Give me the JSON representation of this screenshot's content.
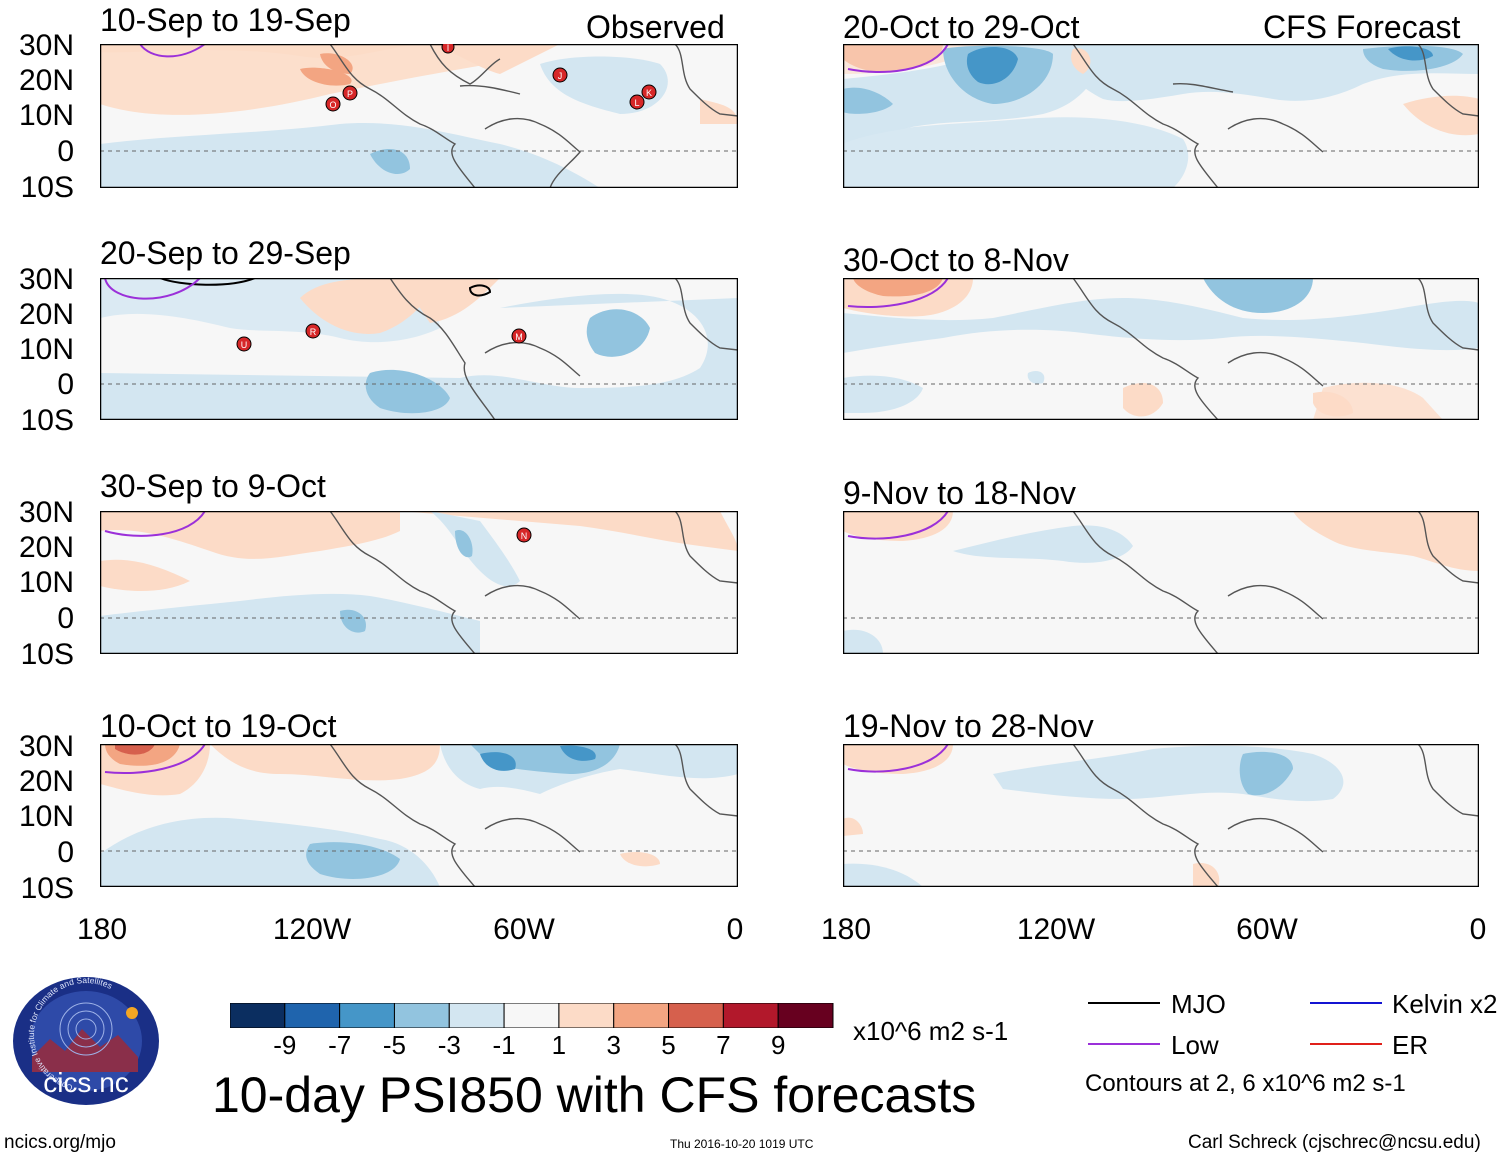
{
  "panels": [
    {
      "title": "10-Sep to 19-Sep",
      "tag": "Observed",
      "storms": [
        "O",
        "P",
        "I",
        "J",
        "K",
        "L"
      ]
    },
    {
      "title": "20-Sep to 29-Sep",
      "tag": "",
      "storms": [
        "U",
        "R",
        "M"
      ]
    },
    {
      "title": "30-Sep to 9-Oct",
      "tag": "",
      "storms": [
        "N"
      ]
    },
    {
      "title": "10-Oct to 19-Oct",
      "tag": ""
    },
    {
      "title": "20-Oct to 29-Oct",
      "tag": "CFS Forecast"
    },
    {
      "title": "30-Oct to 8-Nov",
      "tag": ""
    },
    {
      "title": "9-Nov to 18-Nov",
      "tag": ""
    },
    {
      "title": "19-Nov to 28-Nov",
      "tag": ""
    }
  ],
  "lat_labels": [
    "30N",
    "20N",
    "10N",
    "0",
    "10S"
  ],
  "lon_labels": [
    "180",
    "120W",
    "60W",
    "0"
  ],
  "colorbar": {
    "labels": [
      "-9",
      "-7",
      "-5",
      "-3",
      "-1",
      "1",
      "3",
      "5",
      "7",
      "9"
    ],
    "units": "x10^6 m2 s-1",
    "colors": [
      "#0b2e60",
      "#1f64ad",
      "#4596c8",
      "#92c4df",
      "#d3e6f1",
      "#f7f7f7",
      "#fcdbc7",
      "#f3a582",
      "#d6604d",
      "#b2182b",
      "#67001f"
    ]
  },
  "title": "10-day PSI850 with CFS forecasts",
  "logo_text": "cics.nc",
  "logo_ring": "Cooperative Institute for Climate and Satellites",
  "legend": {
    "mjo": "MJO",
    "low": "Low",
    "kelvin": "Kelvin x2",
    "er": "ER",
    "contours": "Contours at 2, 6 x10^6 m2 s-1",
    "colors": {
      "mjo": "#000000",
      "low": "#9b30d9",
      "kelvin": "#1414d2",
      "er": "#e0201a"
    }
  },
  "footer": {
    "left": "ncics.org/mjo",
    "center": "Thu 2016-10-20 1019 UTC",
    "right": "Carl Schreck (cjschrec@ncsu.edu)"
  }
}
